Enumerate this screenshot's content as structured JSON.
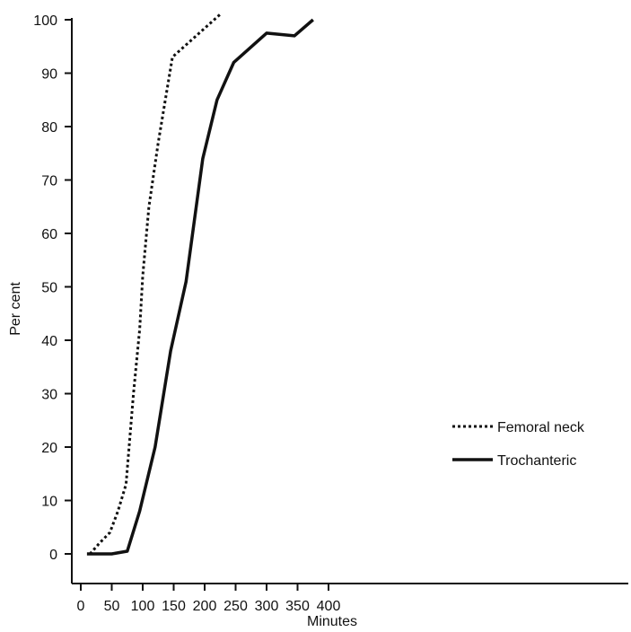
{
  "chart_data": {
    "type": "line",
    "title": "",
    "xlabel": "Minutes",
    "ylabel": "Per cent",
    "xlim": [
      0,
      430
    ],
    "ylim": [
      -2,
      101
    ],
    "xticks": [
      0,
      50,
      100,
      150,
      200,
      250,
      300,
      350,
      400
    ],
    "yticks": [
      0,
      10,
      20,
      30,
      40,
      50,
      60,
      70,
      80,
      90,
      100
    ],
    "grid": false,
    "legend_position": "bottom-right",
    "series": [
      {
        "name": "Femoral neck",
        "style": "dotted",
        "x": [
          15,
          30,
          47,
          60,
          73,
          85,
          95,
          100,
          110,
          125,
          148,
          225
        ],
        "y": [
          0,
          2,
          4,
          8,
          13,
          30,
          42,
          52,
          65,
          77,
          93,
          101
        ]
      },
      {
        "name": "Trochanteric",
        "style": "solid",
        "x": [
          10,
          50,
          75,
          95,
          120,
          145,
          170,
          197,
          220,
          247,
          300,
          345,
          375
        ],
        "y": [
          0,
          0,
          0.5,
          8,
          20,
          38,
          51,
          74,
          85,
          92,
          97.5,
          97,
          100
        ]
      }
    ]
  },
  "colors": {
    "line": "#111111"
  }
}
